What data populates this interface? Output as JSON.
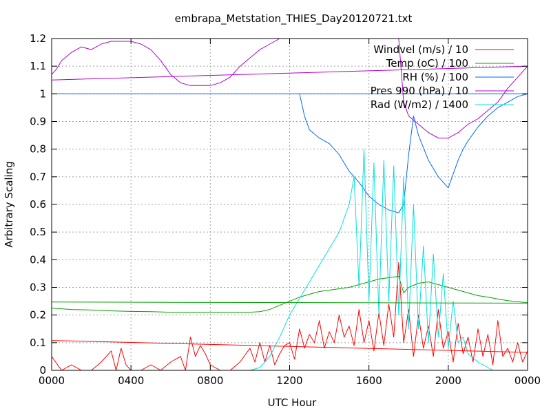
{
  "chart_data": {
    "type": "line",
    "title": "embrapa_Metstation_THIES_Day20120721.txt",
    "xlabel": "UTC Hour",
    "ylabel": "Arbitrary Scaling",
    "xlim": [
      0,
      24
    ],
    "ylim": [
      0,
      1.2
    ],
    "grid": true,
    "legend_position": "top-right",
    "x_ticks": [
      {
        "value": 0,
        "label": "0000"
      },
      {
        "value": 4,
        "label": "0400"
      },
      {
        "value": 8,
        "label": "0800"
      },
      {
        "value": 12,
        "label": "1200"
      },
      {
        "value": 16,
        "label": "1600"
      },
      {
        "value": 20,
        "label": "2000"
      },
      {
        "value": 24,
        "label": "0000"
      }
    ],
    "y_ticks": [
      {
        "value": 0,
        "label": "0"
      },
      {
        "value": 0.1,
        "label": "0.1"
      },
      {
        "value": 0.2,
        "label": "0.2"
      },
      {
        "value": 0.3,
        "label": "0.3"
      },
      {
        "value": 0.4,
        "label": "0.4"
      },
      {
        "value": 0.5,
        "label": "0.5"
      },
      {
        "value": 0.6,
        "label": "0.6"
      },
      {
        "value": 0.7,
        "label": "0.7"
      },
      {
        "value": 0.8,
        "label": "0.8"
      },
      {
        "value": 0.9,
        "label": "0.9"
      },
      {
        "value": 1.0,
        "label": "1"
      },
      {
        "value": 1.1,
        "label": "1.1"
      },
      {
        "value": 1.2,
        "label": "1.2"
      }
    ],
    "series": [
      {
        "name": "Windvel (m/s) / 10",
        "color": "#ff0000",
        "x": [
          0.0,
          0.5,
          1.0,
          1.5,
          2.0,
          2.5,
          3.0,
          3.25,
          3.5,
          3.75,
          4.0,
          4.5,
          5.0,
          5.5,
          6.0,
          6.5,
          6.75,
          7.0,
          7.25,
          7.5,
          7.75,
          8.0,
          8.5,
          9.0,
          9.5,
          10.0,
          10.25,
          10.5,
          10.75,
          11.0,
          11.25,
          11.5,
          11.75,
          12.0,
          12.25,
          12.5,
          12.75,
          13.0,
          13.25,
          13.5,
          13.75,
          14.0,
          14.25,
          14.5,
          14.75,
          15.0,
          15.25,
          15.5,
          15.75,
          16.0,
          16.25,
          16.5,
          16.75,
          17.0,
          17.25,
          17.5,
          17.75,
          18.0,
          18.25,
          18.5,
          18.75,
          19.0,
          19.25,
          19.5,
          19.75,
          20.0,
          20.25,
          20.5,
          20.75,
          21.0,
          21.25,
          21.5,
          21.75,
          22.0,
          22.25,
          22.5,
          22.75,
          23.0,
          23.25,
          23.5,
          23.75,
          24.0
        ],
        "values": [
          0.05,
          0.0,
          0.02,
          0.0,
          0.0,
          0.03,
          0.07,
          0.0,
          0.08,
          0.02,
          0.0,
          0.0,
          0.02,
          0.0,
          0.03,
          0.05,
          0.0,
          0.12,
          0.05,
          0.09,
          0.06,
          0.02,
          0.0,
          0.0,
          0.03,
          0.08,
          0.03,
          0.1,
          0.03,
          0.09,
          0.02,
          0.06,
          0.09,
          0.1,
          0.04,
          0.15,
          0.08,
          0.13,
          0.1,
          0.18,
          0.08,
          0.14,
          0.1,
          0.2,
          0.12,
          0.16,
          0.09,
          0.22,
          0.1,
          0.18,
          0.07,
          0.21,
          0.09,
          0.24,
          0.12,
          0.39,
          0.1,
          0.22,
          0.05,
          0.2,
          0.08,
          0.16,
          0.05,
          0.22,
          0.08,
          0.14,
          0.03,
          0.17,
          0.06,
          0.12,
          0.03,
          0.15,
          0.05,
          0.13,
          0.02,
          0.18,
          0.05,
          0.08,
          0.03,
          0.1,
          0.03,
          0.07
        ]
      },
      {
        "name": "Temp (oC) / 100",
        "color": "#00a000",
        "x": [
          0.0,
          1.0,
          2.0,
          3.0,
          4.0,
          5.0,
          6.0,
          7.0,
          8.0,
          9.0,
          10.0,
          10.5,
          11.0,
          11.5,
          12.0,
          12.5,
          13.0,
          13.5,
          14.0,
          14.5,
          15.0,
          15.5,
          16.0,
          16.5,
          17.0,
          17.5,
          17.75,
          18.0,
          18.5,
          19.0,
          19.5,
          20.0,
          20.5,
          21.0,
          21.5,
          22.0,
          22.5,
          23.0,
          23.5,
          24.0
        ],
        "values": [
          0.225,
          0.22,
          0.218,
          0.215,
          0.213,
          0.212,
          0.21,
          0.21,
          0.21,
          0.21,
          0.21,
          0.212,
          0.22,
          0.235,
          0.25,
          0.265,
          0.275,
          0.285,
          0.29,
          0.295,
          0.3,
          0.31,
          0.32,
          0.33,
          0.335,
          0.34,
          0.28,
          0.3,
          0.315,
          0.32,
          0.31,
          0.3,
          0.29,
          0.28,
          0.27,
          0.265,
          0.258,
          0.252,
          0.248,
          0.245
        ]
      },
      {
        "name": "RH (%) / 100",
        "color": "#0066ff",
        "x": [
          12.5,
          12.75,
          13.0,
          13.5,
          14.0,
          14.5,
          15.0,
          15.5,
          16.0,
          16.5,
          17.0,
          17.5,
          17.75,
          18.0,
          18.25,
          18.5,
          19.0,
          19.5,
          20.0,
          20.5,
          20.75,
          21.0,
          21.5,
          22.0,
          22.5,
          23.0,
          23.5,
          24.0
        ],
        "values": [
          1.0,
          0.92,
          0.87,
          0.84,
          0.82,
          0.78,
          0.72,
          0.68,
          0.63,
          0.6,
          0.58,
          0.57,
          0.6,
          0.78,
          0.92,
          0.85,
          0.76,
          0.7,
          0.66,
          0.76,
          0.8,
          0.83,
          0.88,
          0.92,
          0.95,
          0.97,
          0.99,
          1.0
        ]
      },
      {
        "name": "Pres 990 (hPa) / 10",
        "color": "#b000d0",
        "x": [
          0.0,
          0.25,
          0.5,
          1.0,
          1.5,
          2.0,
          2.5,
          3.0,
          3.5,
          4.0,
          4.5,
          5.0,
          5.5,
          6.0,
          6.5,
          7.0,
          7.5,
          8.0,
          8.5,
          9.0,
          9.5,
          10.0,
          10.5,
          11.0,
          11.25,
          11.5,
          11.75,
          17.5,
          17.75,
          18.0,
          18.5,
          19.0,
          19.5,
          20.0,
          20.5,
          21.0,
          21.5,
          22.0,
          22.5,
          23.0,
          23.5,
          24.0
        ],
        "values": [
          1.07,
          1.09,
          1.12,
          1.15,
          1.17,
          1.16,
          1.18,
          1.19,
          1.19,
          1.19,
          1.18,
          1.16,
          1.12,
          1.07,
          1.04,
          1.03,
          1.03,
          1.03,
          1.04,
          1.06,
          1.1,
          1.13,
          1.16,
          1.18,
          1.19,
          1.2,
          1.2,
          1.2,
          0.97,
          0.92,
          0.89,
          0.86,
          0.84,
          0.84,
          0.86,
          0.89,
          0.91,
          0.94,
          0.97,
          1.02,
          1.06,
          1.1
        ]
      },
      {
        "name": "Rad (W/m2) / 1400",
        "color": "#00e0e0",
        "x": [
          10.0,
          10.5,
          11.0,
          11.5,
          12.0,
          12.5,
          13.0,
          13.5,
          14.0,
          14.5,
          15.0,
          15.25,
          15.5,
          15.75,
          16.0,
          16.25,
          16.5,
          16.75,
          17.0,
          17.25,
          17.5,
          17.75,
          18.0,
          18.25,
          18.5,
          18.75,
          19.0,
          19.25,
          19.5,
          19.75,
          20.0,
          20.25,
          20.5,
          20.75,
          21.0,
          21.5,
          22.0,
          22.25,
          22.5,
          22.75,
          23.0
        ],
        "values": [
          0.0,
          0.01,
          0.05,
          0.12,
          0.2,
          0.26,
          0.32,
          0.38,
          0.44,
          0.5,
          0.6,
          0.7,
          0.3,
          0.8,
          0.25,
          0.75,
          0.2,
          0.76,
          0.25,
          0.74,
          0.2,
          0.7,
          0.15,
          0.6,
          0.15,
          0.45,
          0.1,
          0.42,
          0.12,
          0.35,
          0.08,
          0.25,
          0.1,
          0.12,
          0.06,
          0.03,
          0.01,
          0.0,
          0.0,
          0.0,
          0.0
        ]
      },
      {
        "name": "",
        "color": "#ff0000",
        "x": [
          0.0,
          24.0
        ],
        "values": [
          0.108,
          0.065
        ]
      },
      {
        "name": "",
        "color": "#00a000",
        "x": [
          0.0,
          24.0
        ],
        "values": [
          0.247,
          0.243
        ]
      },
      {
        "name": "",
        "color": "#0066ff",
        "x": [
          0.0,
          24.0
        ],
        "values": [
          1.0,
          1.0
        ]
      },
      {
        "name": "",
        "color": "#b000d0",
        "x": [
          0.0,
          24.0
        ],
        "values": [
          1.05,
          1.1
        ]
      }
    ]
  }
}
